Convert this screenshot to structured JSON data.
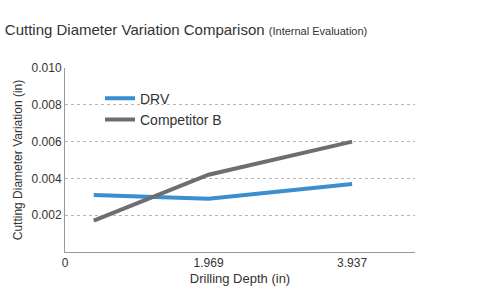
{
  "chart_data": {
    "type": "line",
    "title": "Cutting Diameter Variation Comparison",
    "subtitle": "(Internal Evaluation)",
    "x_label": "Drilling Depth (in)",
    "y_label": "Cutting Diameter Variation (in)",
    "x": [
      0.394,
      1.969,
      3.937
    ],
    "series": [
      {
        "name": "DRV",
        "color": "#3a8fd0",
        "values": [
          0.0031,
          0.0029,
          0.0037
        ]
      },
      {
        "name": "Competitor B",
        "color": "#6d6e71",
        "values": [
          0.0017,
          0.0042,
          0.006
        ]
      }
    ],
    "xlim": [
      0,
      4.8
    ],
    "xticks": [
      0,
      1.969,
      3.937
    ],
    "ylim": [
      0,
      0.01
    ],
    "yticks": [
      0.002,
      0.004,
      0.006,
      0.008,
      {
        "value": 0.01,
        "label": "0.010"
      }
    ],
    "grid": true,
    "legend": "upper left"
  }
}
